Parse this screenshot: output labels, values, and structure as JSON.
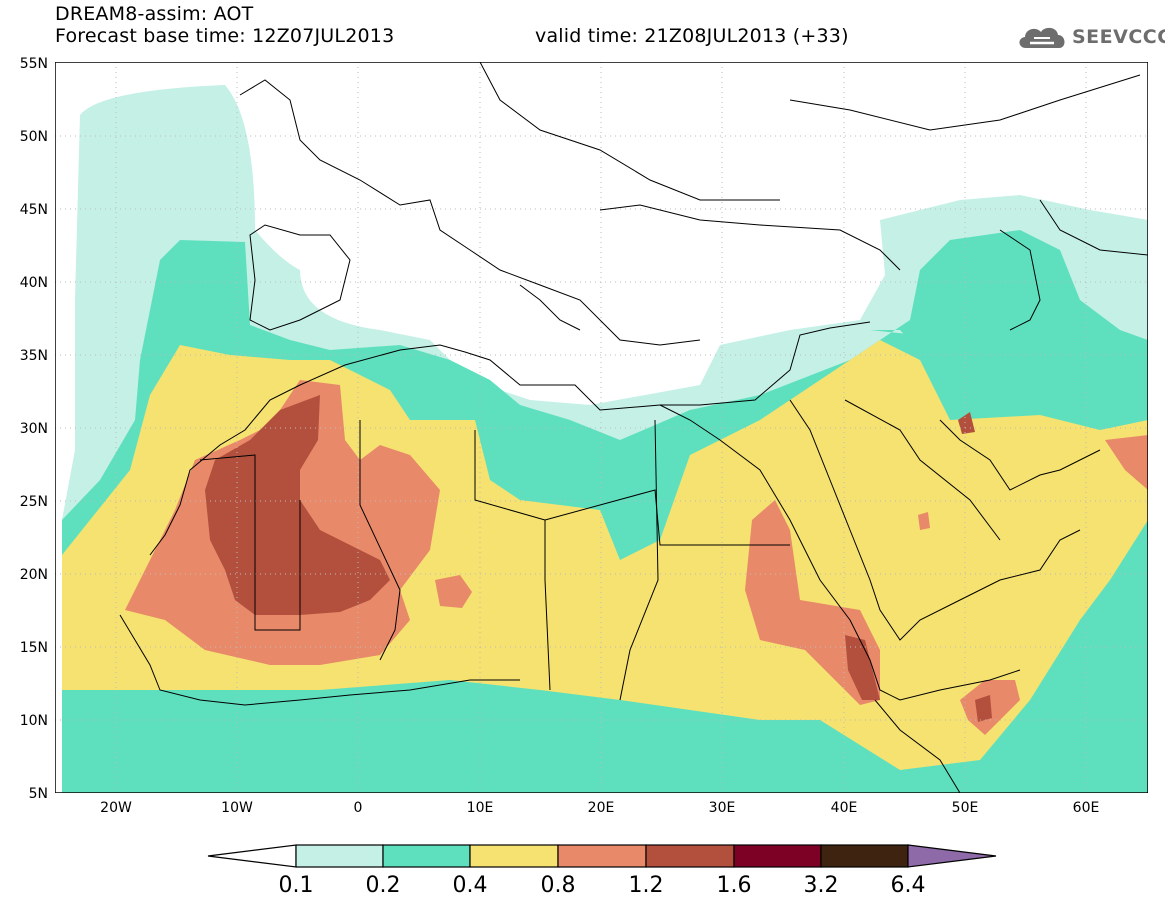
{
  "header": {
    "title": "DREAM8-assim: AOT",
    "base_time_label": "Forecast base time: 12Z07JUL2013",
    "valid_time_label": "valid time: 21Z08JUL2013 (+33)"
  },
  "logo": {
    "text": "SEEVCCC",
    "icon": "cloud-icon",
    "color": "#6d6d6d"
  },
  "map": {
    "projection": "lat-lon",
    "lon_range": [
      -25,
      65
    ],
    "lat_range": [
      5,
      55
    ],
    "lat_ticks": [
      "5N",
      "10N",
      "15N",
      "20N",
      "25N",
      "30N",
      "35N",
      "40N",
      "45N",
      "50N",
      "55N"
    ],
    "lon_ticks": [
      "20W",
      "10W",
      "0",
      "10E",
      "20E",
      "30E",
      "40E",
      "50E",
      "60E"
    ],
    "grid": "dotted"
  },
  "colorbar": {
    "labels": [
      "0.1",
      "0.2",
      "0.4",
      "0.8",
      "1.2",
      "1.6",
      "3.2",
      "6.4"
    ],
    "colors": [
      "#ffffff",
      "#c4f0e6",
      "#5ee0bf",
      "#f5e270",
      "#e8896a",
      "#b3503d",
      "#7d0025",
      "#3e2410",
      "#8f6aa8"
    ]
  }
}
